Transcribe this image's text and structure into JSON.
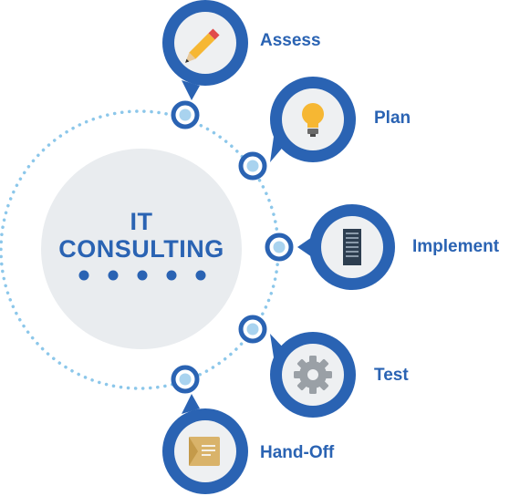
{
  "center": {
    "title_line1": "IT",
    "title_line2": "CONSULTING"
  },
  "steps": [
    {
      "label": "Assess",
      "icon": "pencil-icon"
    },
    {
      "label": "Plan",
      "icon": "lightbulb-icon"
    },
    {
      "label": "Implement",
      "icon": "server-icon"
    },
    {
      "label": "Test",
      "icon": "gear-icon"
    },
    {
      "label": "Hand-Off",
      "icon": "folder-icon"
    }
  ],
  "colors": {
    "primary_blue": "#2a63b3",
    "light_blue": "#a9d3ef",
    "dotted_ring": "#8cc7ea",
    "center_fill": "#e9ecef",
    "icon_bg": "#eef0f2"
  }
}
